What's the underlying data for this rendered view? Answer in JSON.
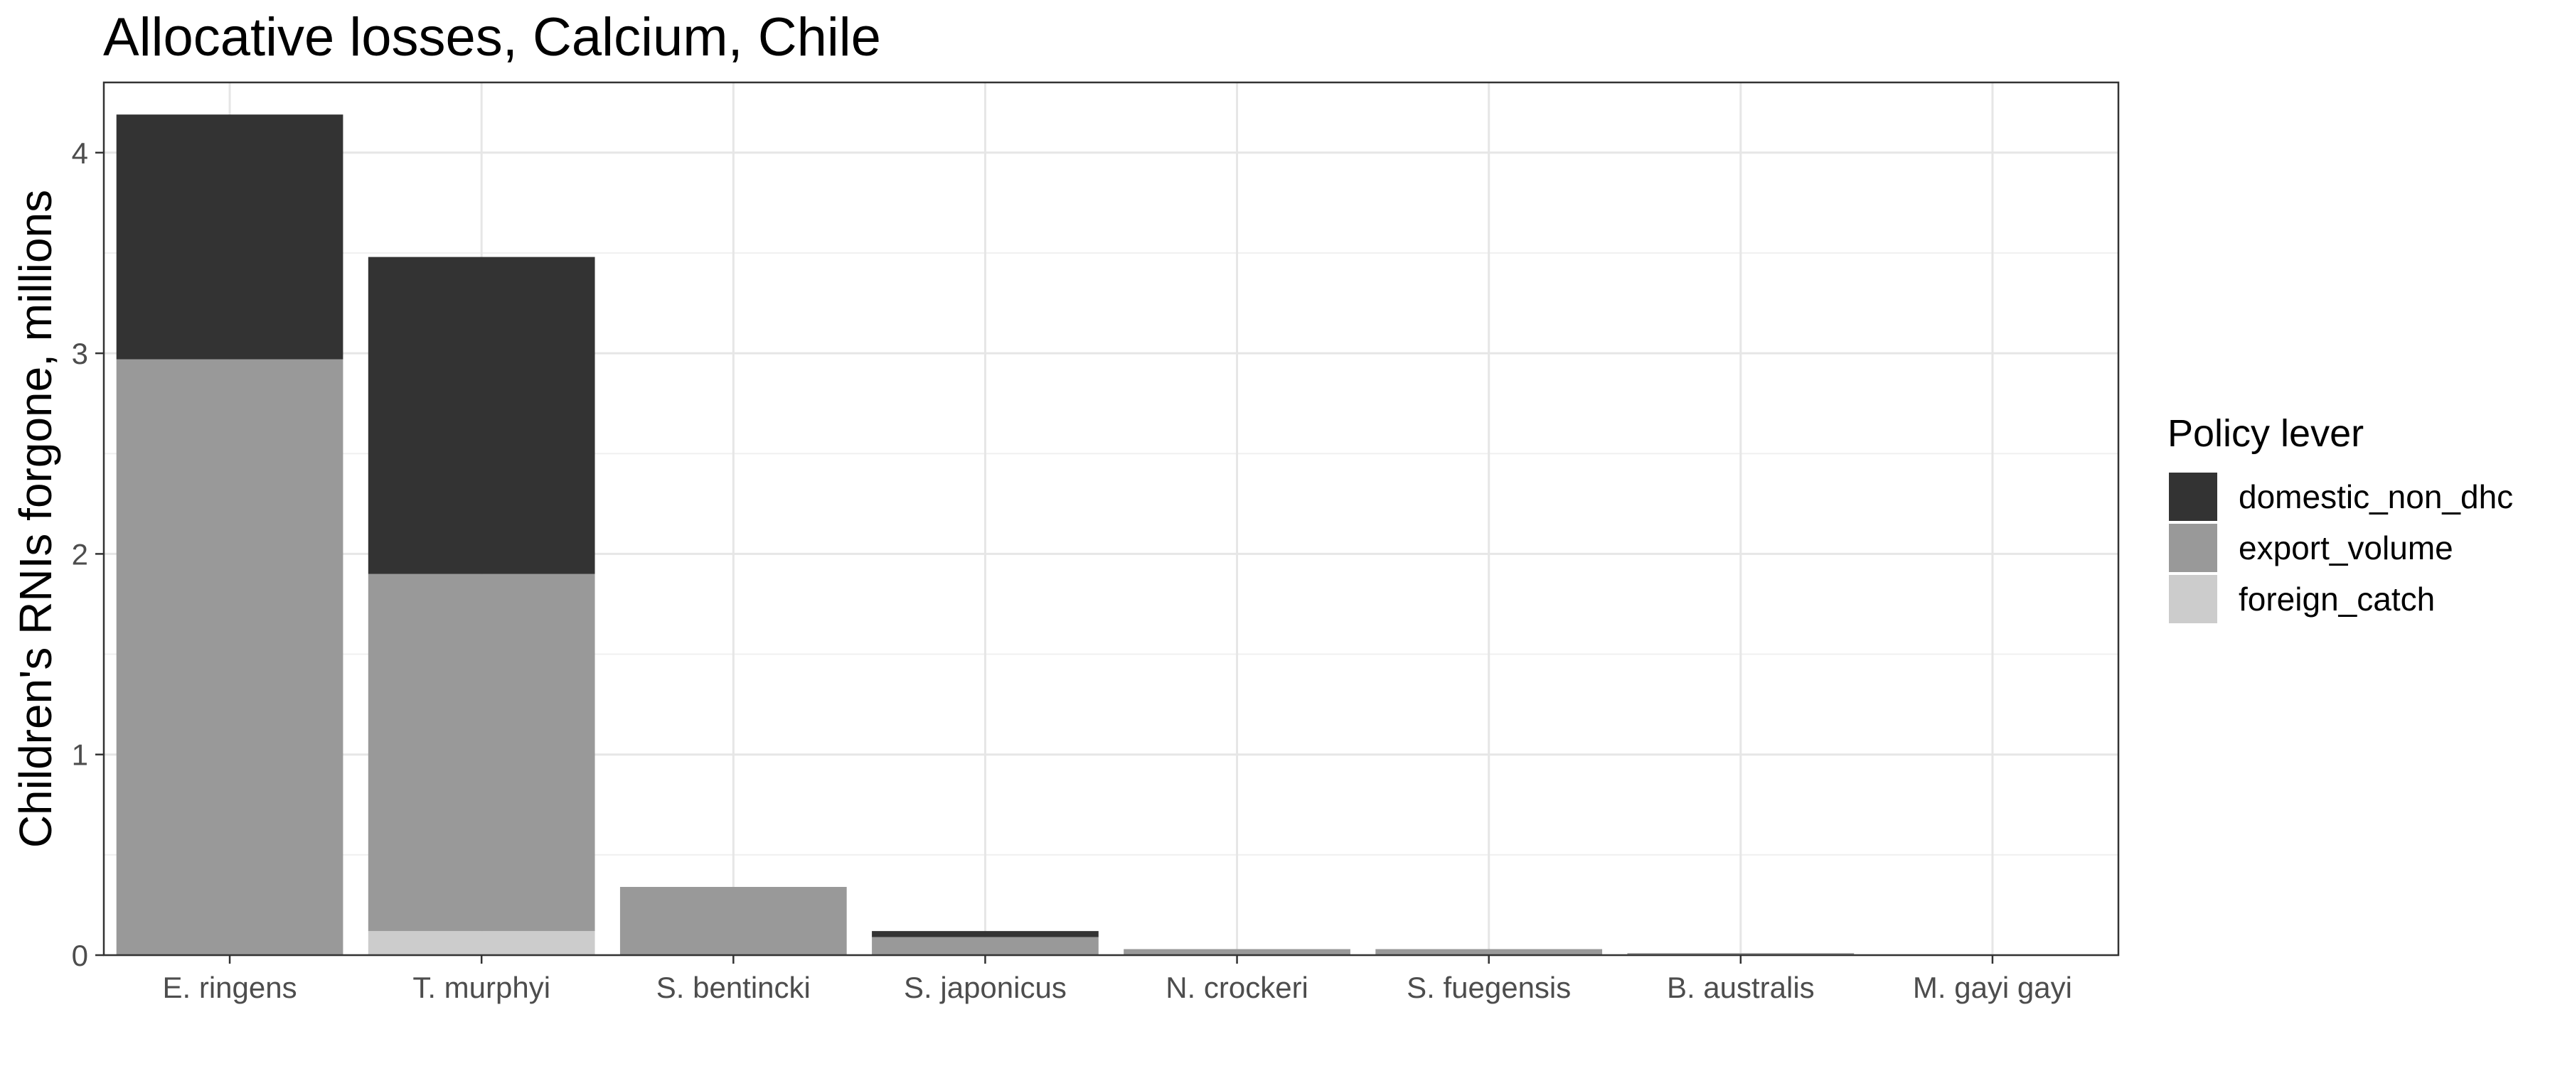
{
  "chart_data": {
    "type": "bar",
    "stacked": true,
    "title": "Allocative losses, Calcium, Chile",
    "xlabel": "",
    "ylabel": "Children's RNIs forgone, millions",
    "ylim": [
      0,
      4.35
    ],
    "yticks": [
      0,
      1,
      2,
      3,
      4
    ],
    "grid": true,
    "legend_title": "Policy lever",
    "legend_position": "right",
    "categories": [
      "E. ringens",
      "T. murphyi",
      "S. bentincki",
      "S. japonicus",
      "N. crockeri",
      "S. fuegensis",
      "B. australis",
      "M. gayi gayi"
    ],
    "series": [
      {
        "name": "foreign_catch",
        "color": "#cccccc",
        "values": [
          0,
          0.12,
          0,
          0,
          0,
          0,
          0,
          0
        ]
      },
      {
        "name": "export_volume",
        "color": "#999999",
        "values": [
          2.97,
          1.78,
          0.34,
          0.09,
          0.03,
          0.03,
          0.01,
          0
        ]
      },
      {
        "name": "domestic_non_dhc",
        "color": "#333333",
        "values": [
          1.22,
          1.58,
          0,
          0.03,
          0,
          0,
          0,
          0
        ]
      }
    ],
    "legend_order": [
      "domestic_non_dhc",
      "export_volume",
      "foreign_catch"
    ]
  }
}
